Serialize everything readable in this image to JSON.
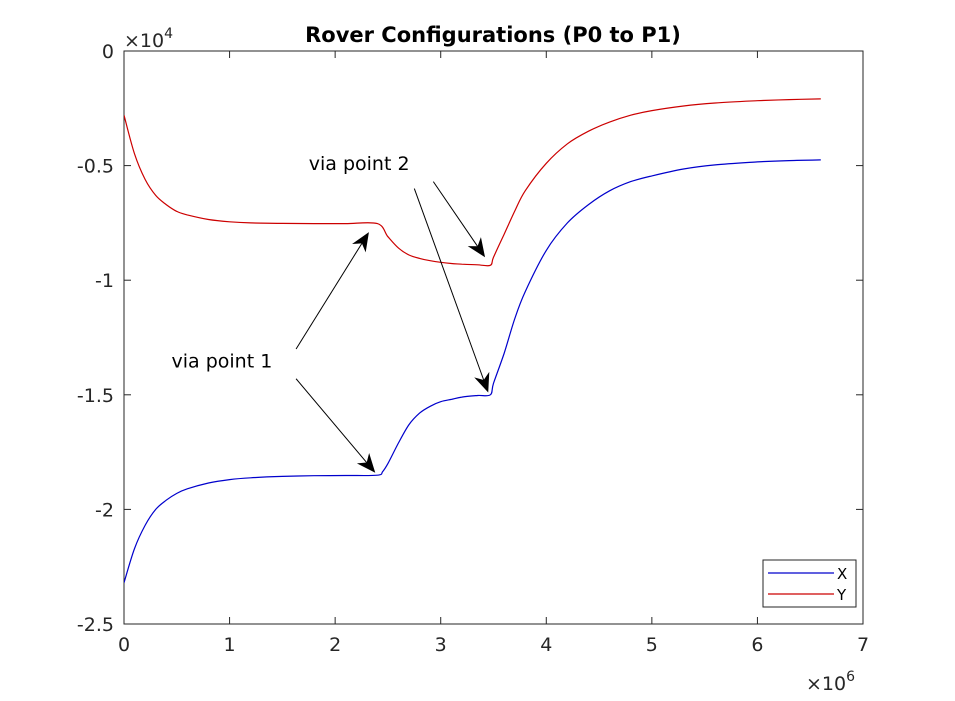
{
  "chart_data": {
    "type": "line",
    "title": "Rover Configurations (P0 to P1)",
    "xlabel": "",
    "ylabel": "",
    "x_multiplier_label": "×10",
    "x_multiplier_exponent": "6",
    "y_multiplier_label": "×10",
    "y_multiplier_exponent": "4",
    "xlim": [
      0,
      7
    ],
    "ylim": [
      -2.5,
      0
    ],
    "x_ticks": [
      {
        "value": 0,
        "label": "0"
      },
      {
        "value": 1,
        "label": "1"
      },
      {
        "value": 2,
        "label": "2"
      },
      {
        "value": 3,
        "label": "3"
      },
      {
        "value": 4,
        "label": "4"
      },
      {
        "value": 5,
        "label": "5"
      },
      {
        "value": 6,
        "label": "6"
      },
      {
        "value": 7,
        "label": "7"
      }
    ],
    "y_ticks": [
      {
        "value": 0,
        "label": "0"
      },
      {
        "value": -0.5,
        "label": "-0.5"
      },
      {
        "value": -1,
        "label": "-1"
      },
      {
        "value": -1.5,
        "label": "-1.5"
      },
      {
        "value": -2,
        "label": "-2"
      },
      {
        "value": -2.5,
        "label": "-2.5"
      }
    ],
    "grid": false,
    "legend_position": "bottom-right",
    "series": [
      {
        "name": "X",
        "color": "#0000cc",
        "x": [
          0,
          0.1,
          0.2,
          0.3,
          0.4,
          0.5,
          0.6,
          0.8,
          1.0,
          1.2,
          1.5,
          1.8,
          2.1,
          2.4,
          2.45,
          2.5,
          2.6,
          2.7,
          2.8,
          2.9,
          3.0,
          3.1,
          3.2,
          3.35,
          3.47,
          3.5,
          3.6,
          3.7,
          3.8,
          4.0,
          4.2,
          4.4,
          4.6,
          4.8,
          5.0,
          5.3,
          5.6,
          6.0,
          6.3,
          6.6
        ],
        "y": [
          -2.32,
          -2.17,
          -2.07,
          -2.0,
          -1.96,
          -1.93,
          -1.91,
          -1.885,
          -1.87,
          -1.862,
          -1.856,
          -1.853,
          -1.852,
          -1.851,
          -1.835,
          -1.8,
          -1.71,
          -1.63,
          -1.58,
          -1.55,
          -1.53,
          -1.52,
          -1.51,
          -1.503,
          -1.5,
          -1.45,
          -1.32,
          -1.17,
          -1.05,
          -0.87,
          -0.75,
          -0.67,
          -0.61,
          -0.57,
          -0.545,
          -0.515,
          -0.497,
          -0.484,
          -0.478,
          -0.475
        ]
      },
      {
        "name": "Y",
        "color": "#cc0000",
        "x": [
          0,
          0.1,
          0.2,
          0.3,
          0.4,
          0.5,
          0.6,
          0.8,
          1.0,
          1.2,
          1.5,
          1.8,
          2.1,
          2.4,
          2.5,
          2.6,
          2.7,
          2.8,
          2.9,
          3.0,
          3.1,
          3.2,
          3.35,
          3.47,
          3.5,
          3.6,
          3.7,
          3.8,
          4.0,
          4.2,
          4.4,
          4.6,
          4.8,
          5.0,
          5.3,
          5.6,
          6.0,
          6.3,
          6.6
        ],
        "y": [
          -0.28,
          -0.45,
          -0.56,
          -0.63,
          -0.67,
          -0.7,
          -0.715,
          -0.735,
          -0.745,
          -0.75,
          -0.752,
          -0.753,
          -0.753,
          -0.753,
          -0.81,
          -0.86,
          -0.89,
          -0.905,
          -0.915,
          -0.922,
          -0.927,
          -0.93,
          -0.933,
          -0.935,
          -0.9,
          -0.8,
          -0.7,
          -0.61,
          -0.49,
          -0.405,
          -0.35,
          -0.31,
          -0.28,
          -0.26,
          -0.24,
          -0.227,
          -0.217,
          -0.212,
          -0.209
        ]
      }
    ],
    "annotations": [
      {
        "text": "via point 1",
        "text_pos": [
          0.45,
          -1.38
        ],
        "arrows": [
          {
            "from": [
              1.63,
              -1.3
            ],
            "to": [
              2.32,
              -0.79
            ]
          },
          {
            "from": [
              1.63,
              -1.43
            ],
            "to": [
              2.38,
              -1.84
            ]
          }
        ]
      },
      {
        "text": "via point 2",
        "text_pos": [
          1.75,
          -0.52
        ],
        "arrows": [
          {
            "from": [
              2.93,
              -0.57
            ],
            "to": [
              3.42,
              -0.9
            ]
          },
          {
            "from": [
              2.75,
              -0.6
            ],
            "to": [
              3.45,
              -1.49
            ]
          }
        ]
      }
    ]
  }
}
